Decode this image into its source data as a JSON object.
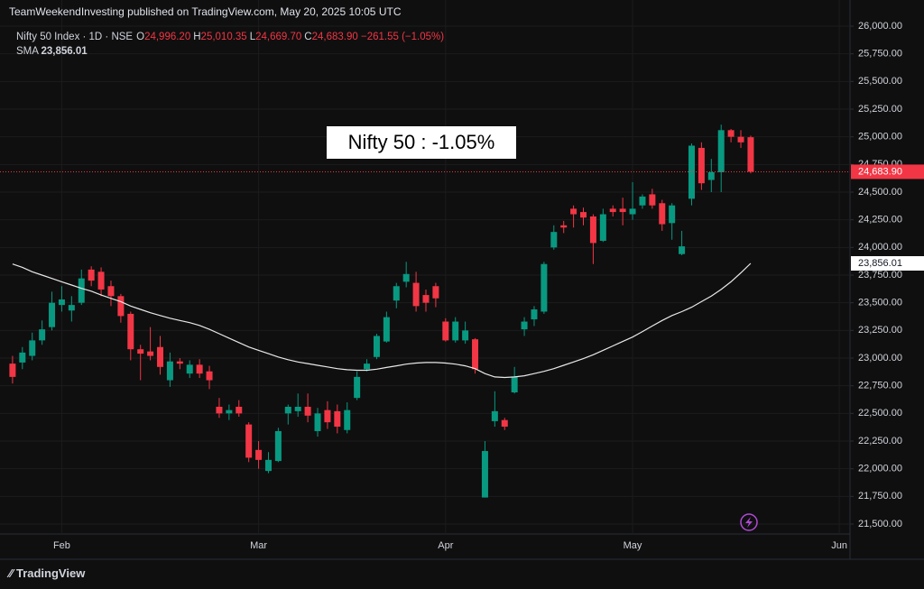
{
  "chart_data": {
    "type": "candlestick",
    "title": "TeamWeekendInvesting published on TradingView.com, May 20, 2025 10:05 UTC",
    "symbol": "Nifty 50 Index · 1D · NSE",
    "ohlc_legend": [
      {
        "key": "O",
        "label": "24,996.20"
      },
      {
        "key": "H",
        "label": "25,010.35"
      },
      {
        "key": "L",
        "label": "24,669.70"
      },
      {
        "key": "C",
        "label": "24,683.90"
      }
    ],
    "change_label": "−261.55 (−1.05%)",
    "annotation": "Nifty 50 : -1.05%",
    "footer": "TradingView",
    "up_color": "#089981",
    "down_color": "#f23645",
    "open": [
      22950,
      22960,
      23020,
      23160,
      23280,
      23480,
      23430,
      23500,
      23800,
      23780,
      23650,
      23560,
      23400,
      23080,
      23060,
      23100,
      22800,
      22970,
      22860,
      22940,
      22880,
      22560,
      22500,
      22560,
      22400,
      22170,
      21980,
      22070,
      22500,
      22520,
      22560,
      22340,
      22530,
      22520,
      22350,
      22640,
      22900,
      23010,
      23150,
      23520,
      23690,
      23680,
      23570,
      23650,
      23330,
      23160,
      23160,
      23170,
      21740,
      22430,
      22440,
      22690,
      23260,
      23350,
      23420,
      24000,
      24200,
      24350,
      24320,
      24280,
      24060,
      24350,
      24350,
      24300,
      24380,
      24480,
      24400,
      24220,
      23940,
      24440,
      24900,
      24610,
      24680,
      25060,
      25000,
      24996.2
    ],
    "high": [
      23020,
      23100,
      23230,
      23340,
      23600,
      23650,
      23560,
      23800,
      23830,
      23820,
      23700,
      23580,
      23420,
      23120,
      23280,
      23200,
      23050,
      23000,
      22980,
      22990,
      22930,
      22640,
      22580,
      22620,
      22420,
      22250,
      22150,
      22370,
      22580,
      22680,
      22680,
      22550,
      22610,
      22580,
      22600,
      22880,
      22990,
      23220,
      23420,
      23680,
      23870,
      23780,
      23620,
      23680,
      23360,
      23370,
      23330,
      23180,
      22250,
      22700,
      22460,
      22920,
      23370,
      23470,
      23870,
      24200,
      24240,
      24380,
      24360,
      24300,
      24350,
      24380,
      24450,
      24590,
      24480,
      24530,
      24430,
      24400,
      24150,
      24940,
      24950,
      24800,
      25110,
      25070,
      25060,
      25010.35
    ],
    "low": [
      22770,
      22900,
      22980,
      23120,
      23250,
      23420,
      23330,
      23480,
      23650,
      23560,
      23470,
      23320,
      22980,
      22800,
      22980,
      22850,
      22740,
      22900,
      22820,
      22820,
      22720,
      22460,
      22440,
      22470,
      22060,
      22000,
      21960,
      22060,
      22400,
      22470,
      22420,
      22290,
      22360,
      22320,
      22320,
      22620,
      22880,
      22990,
      23140,
      23450,
      23640,
      23420,
      23420,
      23460,
      23150,
      23140,
      23130,
      22860,
      21740,
      22380,
      22350,
      22680,
      23200,
      23290,
      23400,
      23980,
      24130,
      24180,
      24200,
      23850,
      24050,
      24280,
      24200,
      24250,
      24350,
      24350,
      24150,
      24070,
      23930,
      24380,
      24520,
      24500,
      24500,
      24950,
      24900,
      24669.7
    ],
    "close": [
      22830,
      23050,
      23160,
      23260,
      23500,
      23530,
      23480,
      23720,
      23700,
      23620,
      23560,
      23380,
      23080,
      23040,
      23020,
      22920,
      22970,
      22950,
      22940,
      22860,
      22800,
      22500,
      22530,
      22500,
      22100,
      22080,
      22080,
      22340,
      22560,
      22560,
      22480,
      22500,
      22420,
      22380,
      22530,
      22830,
      22950,
      23200,
      23370,
      23650,
      23760,
      23470,
      23500,
      23540,
      23160,
      23330,
      23250,
      22900,
      22160,
      22520,
      22380,
      22830,
      23330,
      23440,
      23850,
      24140,
      24180,
      24300,
      24270,
      24040,
      24300,
      24320,
      24320,
      24350,
      24460,
      24380,
      24210,
      24380,
      24010,
      24920,
      24580,
      24680,
      25060,
      25000,
      24950,
      24683.9
    ],
    "last_price": {
      "value": 24683.9,
      "label": "24,683.90"
    },
    "sma": {
      "name": "SMA",
      "color": "#e8e8e8",
      "value_label": "23,856.01",
      "values": [
        23850,
        23820,
        23780,
        23750,
        23720,
        23690,
        23660,
        23630,
        23605,
        23570,
        23540,
        23510,
        23470,
        23440,
        23410,
        23385,
        23360,
        23340,
        23320,
        23295,
        23260,
        23220,
        23180,
        23140,
        23100,
        23070,
        23040,
        23010,
        22985,
        22965,
        22950,
        22935,
        22920,
        22905,
        22895,
        22890,
        22890,
        22900,
        22915,
        22930,
        22945,
        22955,
        22960,
        22960,
        22955,
        22945,
        22930,
        22905,
        22860,
        22830,
        22825,
        22830,
        22840,
        22860,
        22880,
        22905,
        22935,
        22965,
        22995,
        23030,
        23070,
        23110,
        23150,
        23190,
        23240,
        23290,
        23340,
        23385,
        23420,
        23460,
        23510,
        23560,
        23620,
        23690,
        23770,
        23856.01
      ]
    },
    "xlim": [
      -1,
      85
    ],
    "xticks": [
      {
        "value": 5,
        "label": "Feb"
      },
      {
        "value": 25,
        "label": "Mar"
      },
      {
        "value": 44,
        "label": "Apr"
      },
      {
        "value": 63,
        "label": "May"
      },
      {
        "value": 84,
        "label": "Jun"
      }
    ],
    "ylim": [
      21500,
      26000
    ],
    "yticks": [
      {
        "value": 21500,
        "label": "21,500.00"
      },
      {
        "value": 21750,
        "label": "21,750.00"
      },
      {
        "value": 22000,
        "label": "22,000.00"
      },
      {
        "value": 22250,
        "label": "22,250.00"
      },
      {
        "value": 22500,
        "label": "22,500.00"
      },
      {
        "value": 22750,
        "label": "22,750.00"
      },
      {
        "value": 23000,
        "label": "23,000.00"
      },
      {
        "value": 23250,
        "label": "23,250.00"
      },
      {
        "value": 23500,
        "label": "23,500.00"
      },
      {
        "value": 23750,
        "label": "23,750.00"
      },
      {
        "value": 24000,
        "label": "24,000.00"
      },
      {
        "value": 24250,
        "label": "24,250.00"
      },
      {
        "value": 24500,
        "label": "24,500.00"
      },
      {
        "value": 24750,
        "label": "24,750.00"
      },
      {
        "value": 25000,
        "label": "25,000.00"
      },
      {
        "value": 25250,
        "label": "25,250.00"
      },
      {
        "value": 25500,
        "label": "25,500.00"
      },
      {
        "value": 25750,
        "label": "25,750.00"
      },
      {
        "value": 26000,
        "label": "26,000.00"
      }
    ],
    "grid": true
  }
}
